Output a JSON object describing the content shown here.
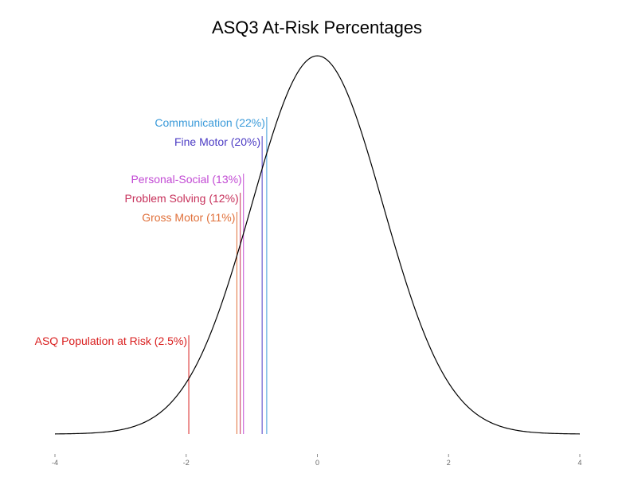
{
  "chart_data": {
    "type": "line",
    "title": "ASQ3 At-Risk Percentages",
    "xlabel": "",
    "ylabel": "",
    "xlim": [
      -4,
      4
    ],
    "x_ticks": [
      -4,
      -2,
      0,
      2,
      4
    ],
    "grid": false,
    "legend": "none",
    "series": [
      {
        "curve": "standard normal density",
        "color": "#000000",
        "x_range": [
          -4,
          4
        ],
        "peak_x": 0,
        "peak_y": 0.399
      }
    ],
    "annotations": [
      {
        "label": "Communication (22%)",
        "percent": 22,
        "x": -0.772,
        "color": "#3a9ad9"
      },
      {
        "label": "Fine Motor (20%)",
        "percent": 20,
        "x": -0.842,
        "color": "#4b3bc4"
      },
      {
        "label": "Personal-Social (13%)",
        "percent": 13,
        "x": -1.126,
        "color": "#c24ad4"
      },
      {
        "label": "Problem Solving (12%)",
        "percent": 12,
        "x": -1.175,
        "color": "#c7305a"
      },
      {
        "label": "Gross Motor (11%)",
        "percent": 11,
        "x": -1.227,
        "color": "#e0703a"
      },
      {
        "label": "ASQ Population at Risk (2.5%)",
        "percent": 2.5,
        "x": -1.96,
        "color": "#d91e1e"
      }
    ]
  }
}
